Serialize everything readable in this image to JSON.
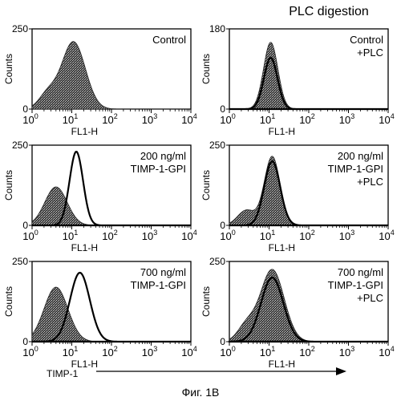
{
  "header": {
    "title": "PLC digestion"
  },
  "footer": {
    "arrow_label": "TIMP-1",
    "caption": "Фиг. 1B"
  },
  "chart_data": [
    {
      "type": "area",
      "panel": "control",
      "label_lines": [
        "Control"
      ],
      "ylabel": "Counts",
      "xlabel": "FL1-H",
      "xscale": "log",
      "xlim": [
        1,
        10000
      ],
      "ylim": [
        0,
        250
      ],
      "yticks": [
        0,
        250
      ],
      "series": [
        {
          "fill": "shaded",
          "peak_x": 11,
          "peak_y": 210,
          "spread": 0.3,
          "low_shoulder": true
        }
      ]
    },
    {
      "type": "area",
      "panel": "control-plc",
      "label_lines": [
        "Control",
        "+PLC"
      ],
      "ylabel": "Counts",
      "xlabel": "FL1-H",
      "xscale": "log",
      "xlim": [
        1,
        10000
      ],
      "ylim": [
        0,
        180
      ],
      "yticks": [
        0,
        180
      ],
      "series": [
        {
          "fill": "shaded",
          "peak_x": 11,
          "peak_y": 150,
          "spread": 0.18
        },
        {
          "fill": "outline",
          "peak_x": 11,
          "peak_y": 115,
          "spread": 0.17
        }
      ]
    },
    {
      "type": "area",
      "panel": "200-ngml",
      "label_lines": [
        "200 ng/ml",
        "TIMP-1-GPI"
      ],
      "ylabel": "Counts",
      "xlabel": "FL1-H",
      "xscale": "log",
      "xlim": [
        1,
        10000
      ],
      "ylim": [
        0,
        250
      ],
      "yticks": [
        0,
        250
      ],
      "series": [
        {
          "fill": "shaded",
          "peak_x": 4,
          "peak_y": 120,
          "spread": 0.28
        },
        {
          "fill": "outline",
          "peak_x": 13,
          "peak_y": 230,
          "spread": 0.17
        }
      ]
    },
    {
      "type": "area",
      "panel": "200-ngml-plc",
      "label_lines": [
        "200 ng/ml",
        "TIMP-1-GPI",
        "+PLC"
      ],
      "ylabel": "Counts",
      "xlabel": "FL1-H",
      "xscale": "log",
      "xlim": [
        1,
        10000
      ],
      "ylim": [
        0,
        250
      ],
      "yticks": [
        0,
        250
      ],
      "series": [
        {
          "fill": "shaded",
          "peak_x": 12,
          "peak_y": 215,
          "spread": 0.2,
          "low_shoulder": true
        },
        {
          "fill": "outline",
          "peak_x": 12,
          "peak_y": 200,
          "spread": 0.2
        }
      ]
    },
    {
      "type": "area",
      "panel": "700-ngml",
      "label_lines": [
        "700 ng/ml",
        "TIMP-1-GPI"
      ],
      "ylabel": "Counts",
      "xlabel": "FL1-H",
      "xscale": "log",
      "xlim": [
        1,
        10000
      ],
      "ylim": [
        0,
        250
      ],
      "yticks": [
        0,
        250
      ],
      "series": [
        {
          "fill": "shaded",
          "peak_x": 4,
          "peak_y": 170,
          "spread": 0.3
        },
        {
          "fill": "outline",
          "peak_x": 16,
          "peak_y": 215,
          "spread": 0.25
        }
      ]
    },
    {
      "type": "area",
      "panel": "700-ngml-plc",
      "label_lines": [
        "700 ng/ml",
        "TIMP-1-GPI",
        "+PLC"
      ],
      "ylabel": "Counts",
      "xlabel": "FL1-H",
      "xscale": "log",
      "xlim": [
        1,
        10000
      ],
      "ylim": [
        0,
        250
      ],
      "yticks": [
        0,
        250
      ],
      "series": [
        {
          "fill": "shaded",
          "peak_x": 12,
          "peak_y": 225,
          "spread": 0.3,
          "low_shoulder": true
        },
        {
          "fill": "outline",
          "peak_x": 12,
          "peak_y": 200,
          "spread": 0.28
        }
      ]
    }
  ]
}
